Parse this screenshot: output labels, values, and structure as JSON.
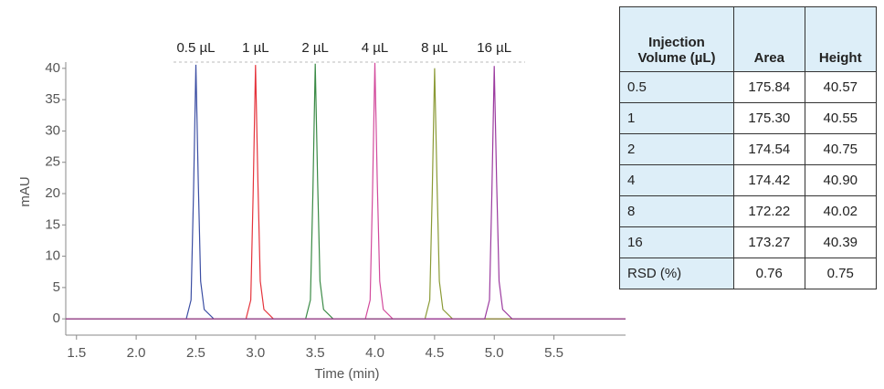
{
  "chart_data": {
    "type": "line",
    "x_label": "Time (min)",
    "y_label": "mAU",
    "xlim": [
      1.41,
      6.1
    ],
    "ylim": [
      -2.6,
      41
    ],
    "xticks": [
      1.5,
      {
        "value": 2,
        "label": "2.0"
      },
      2.5,
      {
        "value": 3,
        "label": "3.0"
      },
      3.5,
      {
        "value": 4,
        "label": "4.0"
      },
      4.5,
      {
        "value": 5,
        "label": "5.0"
      },
      5.5
    ],
    "yticks": [
      0,
      5,
      10,
      15,
      20,
      25,
      30,
      35,
      40
    ],
    "series": [
      {
        "name": "0.5 µL",
        "color": "#3b4ea3",
        "x": [
          1.41,
          2.42,
          2.46,
          2.48,
          2.5,
          2.52,
          2.54,
          2.57,
          2.65,
          6.1
        ],
        "values": [
          0,
          0,
          3,
          20,
          40.57,
          22,
          6,
          1.5,
          0,
          0
        ]
      },
      {
        "name": "1 µL",
        "color": "#e5333b",
        "x": [
          1.41,
          2.92,
          2.96,
          2.98,
          3.0,
          3.02,
          3.04,
          3.07,
          3.15,
          6.1
        ],
        "values": [
          0,
          0,
          3,
          20,
          40.55,
          22,
          6,
          1.5,
          0,
          0
        ]
      },
      {
        "name": "2 µL",
        "color": "#3a8a45",
        "x": [
          1.41,
          3.42,
          3.46,
          3.48,
          3.5,
          3.52,
          3.54,
          3.57,
          3.65,
          6.1
        ],
        "values": [
          0,
          0,
          3,
          20,
          40.75,
          22,
          6,
          1.5,
          0,
          0
        ]
      },
      {
        "name": "4 µL",
        "color": "#d24a9c",
        "x": [
          1.41,
          3.92,
          3.96,
          3.98,
          4.0,
          4.02,
          4.04,
          4.07,
          4.15,
          6.1
        ],
        "values": [
          0,
          0,
          3,
          20,
          40.9,
          22,
          6,
          1.5,
          0,
          0
        ]
      },
      {
        "name": "8 µL",
        "color": "#8a9a35",
        "x": [
          1.41,
          4.42,
          4.46,
          4.48,
          4.5,
          4.52,
          4.54,
          4.57,
          4.65,
          6.1
        ],
        "values": [
          0,
          0,
          3,
          20,
          40.02,
          22,
          6,
          1.5,
          0,
          0
        ]
      },
      {
        "name": "16 µL",
        "color": "#9b3a9f",
        "x": [
          1.41,
          4.92,
          4.96,
          4.98,
          5.0,
          5.02,
          5.04,
          5.07,
          5.15,
          6.1
        ],
        "values": [
          0,
          0,
          3,
          20,
          40.39,
          22,
          6,
          1.5,
          0,
          0
        ]
      }
    ]
  },
  "table": {
    "header": [
      "Injection Volume (µL)",
      "Area",
      "Height"
    ],
    "rows": [
      [
        "0.5",
        "175.84",
        "40.57"
      ],
      [
        "1",
        "175.30",
        "40.55"
      ],
      [
        "2",
        "174.54",
        "40.75"
      ],
      [
        "4",
        "174.42",
        "40.90"
      ],
      [
        "8",
        "172.22",
        "40.02"
      ],
      [
        "16",
        "173.27",
        "40.39"
      ],
      [
        "RSD (%)",
        "0.76",
        "0.75"
      ]
    ]
  }
}
